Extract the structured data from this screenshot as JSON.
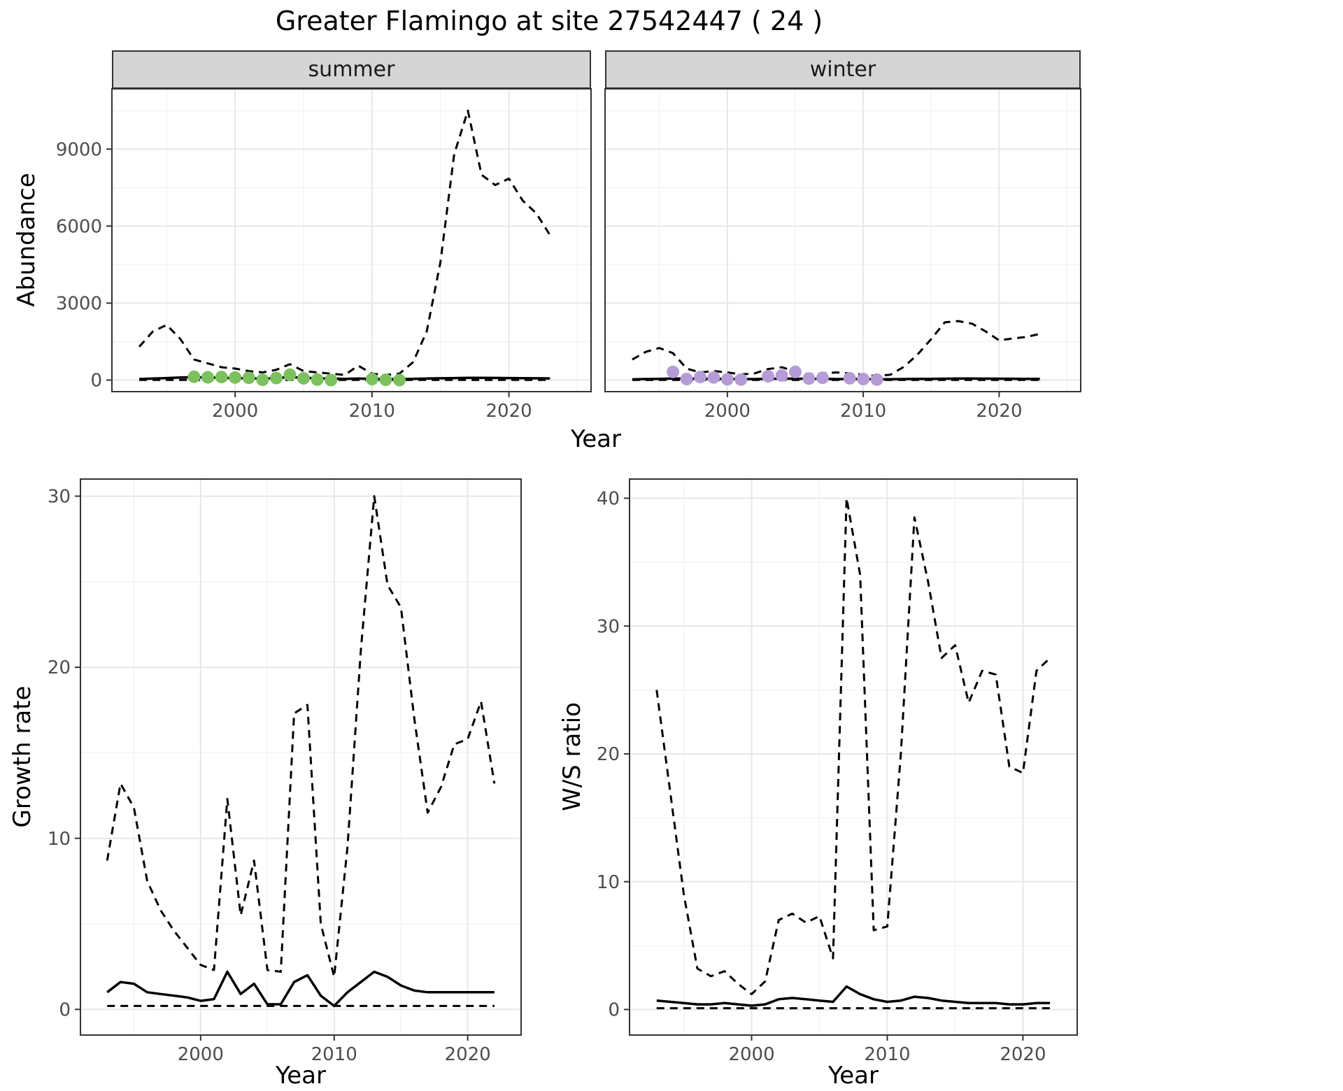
{
  "title": "Greater Flamingo at site 27542447 ( 24 )",
  "colors": {
    "summer_points": "#7cc15e",
    "winter_points": "#b69cd6",
    "line": "#000000"
  },
  "chart_data": [
    {
      "id": "abundance-summer",
      "type": "line",
      "facet_label": "summer",
      "xlabel": "Year",
      "ylabel": "Abundance",
      "xlim": [
        1991,
        2026
      ],
      "ylim": [
        -450,
        11350
      ],
      "xticks": [
        2000,
        2010,
        2020
      ],
      "yticks": [
        0,
        3000,
        6000,
        9000
      ],
      "grid": true,
      "legend": "none",
      "series": [
        {
          "name": "upper_dashed",
          "style": "dashed",
          "color": "#000000",
          "x": [
            1993,
            1994,
            1995,
            1996,
            1997,
            1998,
            1999,
            2000,
            2001,
            2002,
            2003,
            2004,
            2005,
            2006,
            2007,
            2008,
            2009,
            2010,
            2011,
            2012,
            2013,
            2014,
            2015,
            2016,
            2017,
            2018,
            2019,
            2020,
            2021,
            2022,
            2023
          ],
          "y": [
            1300,
            1900,
            2150,
            1600,
            800,
            650,
            500,
            450,
            350,
            300,
            400,
            620,
            350,
            300,
            250,
            200,
            560,
            250,
            200,
            250,
            700,
            1900,
            4600,
            8800,
            10500,
            8000,
            7600,
            7850,
            7000,
            6500,
            5650
          ]
        },
        {
          "name": "estimate_solid",
          "style": "solid",
          "color": "#000000",
          "x": [
            1993,
            1994,
            1995,
            1996,
            1997,
            1998,
            1999,
            2000,
            2001,
            2002,
            2003,
            2004,
            2005,
            2006,
            2007,
            2008,
            2009,
            2010,
            2011,
            2012,
            2013,
            2014,
            2015,
            2016,
            2017,
            2018,
            2019,
            2020,
            2021,
            2022,
            2023
          ],
          "y": [
            40,
            60,
            80,
            100,
            110,
            100,
            90,
            80,
            70,
            60,
            80,
            120,
            90,
            70,
            60,
            50,
            60,
            50,
            40,
            40,
            50,
            60,
            70,
            80,
            90,
            90,
            85,
            80,
            75,
            70,
            65
          ]
        },
        {
          "name": "lower_dashed",
          "style": "dashed",
          "color": "#000000",
          "x": [
            1993,
            1994,
            1995,
            1996,
            1997,
            1998,
            1999,
            2000,
            2001,
            2002,
            2003,
            2004,
            2005,
            2006,
            2007,
            2008,
            2009,
            2010,
            2011,
            2012,
            2013,
            2014,
            2015,
            2016,
            2017,
            2018,
            2019,
            2020,
            2021,
            2022,
            2023
          ],
          "y": [
            5,
            5,
            5,
            5,
            5,
            5,
            5,
            5,
            5,
            5,
            5,
            5,
            5,
            5,
            5,
            5,
            5,
            5,
            5,
            5,
            5,
            5,
            5,
            5,
            5,
            5,
            5,
            5,
            5,
            5,
            5
          ]
        },
        {
          "name": "observed_points",
          "style": "points",
          "color": "#7cc15e",
          "x": [
            1997,
            1998,
            1999,
            2000,
            2001,
            2002,
            2003,
            2004,
            2005,
            2006,
            2007,
            2010,
            2011,
            2012
          ],
          "y": [
            130,
            110,
            120,
            100,
            90,
            10,
            80,
            210,
            70,
            20,
            0,
            40,
            10,
            0
          ]
        }
      ]
    },
    {
      "id": "abundance-winter",
      "type": "line",
      "facet_label": "winter",
      "xlabel": "Year",
      "ylabel": "Abundance",
      "xlim": [
        1991,
        2026
      ],
      "ylim": [
        -450,
        11350
      ],
      "xticks": [
        2000,
        2010,
        2020
      ],
      "yticks": [
        0,
        3000,
        6000,
        9000
      ],
      "grid": true,
      "legend": "none",
      "series": [
        {
          "name": "upper_dashed",
          "style": "dashed",
          "color": "#000000",
          "x": [
            1993,
            1994,
            1995,
            1996,
            1997,
            1998,
            1999,
            2000,
            2001,
            2002,
            2003,
            2004,
            2005,
            2006,
            2007,
            2008,
            2009,
            2010,
            2011,
            2012,
            2013,
            2014,
            2015,
            2016,
            2017,
            2018,
            2019,
            2020,
            2021,
            2022,
            2023
          ],
          "y": [
            800,
            1100,
            1250,
            1050,
            450,
            300,
            350,
            300,
            220,
            260,
            430,
            500,
            340,
            220,
            260,
            300,
            260,
            210,
            160,
            210,
            520,
            1000,
            1600,
            2250,
            2300,
            2200,
            1900,
            1550,
            1620,
            1680,
            1800
          ]
        },
        {
          "name": "estimate_solid",
          "style": "solid",
          "color": "#000000",
          "x": [
            1993,
            1994,
            1995,
            1996,
            1997,
            1998,
            1999,
            2000,
            2001,
            2002,
            2003,
            2004,
            2005,
            2006,
            2007,
            2008,
            2009,
            2010,
            2011,
            2012,
            2013,
            2014,
            2015,
            2016,
            2017,
            2018,
            2019,
            2020,
            2021,
            2022,
            2023
          ],
          "y": [
            30,
            40,
            50,
            60,
            60,
            55,
            50,
            45,
            40,
            40,
            50,
            60,
            55,
            50,
            45,
            40,
            40,
            38,
            35,
            35,
            40,
            45,
            50,
            55,
            60,
            60,
            58,
            55,
            52,
            50,
            50
          ]
        },
        {
          "name": "lower_dashed",
          "style": "dashed",
          "color": "#000000",
          "x": [
            1993,
            1994,
            1995,
            1996,
            1997,
            1998,
            1999,
            2000,
            2001,
            2002,
            2003,
            2004,
            2005,
            2006,
            2007,
            2008,
            2009,
            2010,
            2011,
            2012,
            2013,
            2014,
            2015,
            2016,
            2017,
            2018,
            2019,
            2020,
            2021,
            2022,
            2023
          ],
          "y": [
            5,
            5,
            5,
            5,
            5,
            5,
            5,
            5,
            5,
            5,
            5,
            5,
            5,
            5,
            5,
            5,
            5,
            5,
            5,
            5,
            5,
            5,
            5,
            5,
            5,
            5,
            5,
            5,
            5,
            5,
            5
          ]
        },
        {
          "name": "observed_points",
          "style": "points",
          "color": "#b69cd6",
          "x": [
            1996,
            1997,
            1998,
            1999,
            2000,
            2001,
            2003,
            2004,
            2005,
            2006,
            2007,
            2009,
            2010,
            2011
          ],
          "y": [
            320,
            40,
            120,
            100,
            30,
            20,
            150,
            180,
            320,
            60,
            90,
            70,
            40,
            20
          ]
        }
      ]
    },
    {
      "id": "growth-rate",
      "type": "line",
      "facet_label": "",
      "xlabel": "Year",
      "ylabel": "Growth rate",
      "xlim": [
        1991,
        2024
      ],
      "ylim": [
        -1.5,
        31
      ],
      "xticks": [
        2000,
        2010,
        2020
      ],
      "yticks": [
        0,
        10,
        20,
        30
      ],
      "grid": true,
      "legend": "none",
      "series": [
        {
          "name": "upper_dashed",
          "style": "dashed",
          "color": "#000000",
          "x": [
            1993,
            1994,
            1995,
            1996,
            1997,
            1998,
            1999,
            2000,
            2001,
            2002,
            2003,
            2004,
            2005,
            2006,
            2007,
            2008,
            2009,
            2010,
            2011,
            2012,
            2013,
            2014,
            2015,
            2016,
            2017,
            2018,
            2019,
            2020,
            2021,
            2022
          ],
          "y": [
            8.7,
            13.2,
            11.8,
            7.5,
            5.8,
            4.6,
            3.6,
            2.6,
            2.3,
            12.3,
            5.5,
            8.7,
            2.3,
            2.2,
            17.3,
            17.8,
            5.0,
            1.9,
            9.5,
            21.0,
            30.0,
            24.8,
            23.5,
            17.0,
            11.5,
            13.0,
            15.5,
            15.8,
            18.0,
            13.2
          ]
        },
        {
          "name": "estimate_solid",
          "style": "solid",
          "color": "#000000",
          "x": [
            1993,
            1994,
            1995,
            1996,
            1997,
            1998,
            1999,
            2000,
            2001,
            2002,
            2003,
            2004,
            2005,
            2006,
            2007,
            2008,
            2009,
            2010,
            2011,
            2012,
            2013,
            2014,
            2015,
            2016,
            2017,
            2018,
            2019,
            2020,
            2021,
            2022
          ],
          "y": [
            1.0,
            1.6,
            1.5,
            1.0,
            0.9,
            0.8,
            0.7,
            0.5,
            0.6,
            2.2,
            0.9,
            1.5,
            0.3,
            0.3,
            1.6,
            2.0,
            0.8,
            0.2,
            1.0,
            1.6,
            2.2,
            1.9,
            1.4,
            1.1,
            1.0,
            1.0,
            1.0,
            1.0,
            1.0,
            1.0
          ]
        },
        {
          "name": "lower_dashed",
          "style": "dashed",
          "color": "#000000",
          "x": [
            1993,
            1994,
            1995,
            1996,
            1997,
            1998,
            1999,
            2000,
            2001,
            2002,
            2003,
            2004,
            2005,
            2006,
            2007,
            2008,
            2009,
            2010,
            2011,
            2012,
            2013,
            2014,
            2015,
            2016,
            2017,
            2018,
            2019,
            2020,
            2021,
            2022
          ],
          "y": [
            0.2,
            0.2,
            0.2,
            0.2,
            0.2,
            0.2,
            0.2,
            0.2,
            0.2,
            0.2,
            0.2,
            0.2,
            0.2,
            0.2,
            0.2,
            0.2,
            0.2,
            0.2,
            0.2,
            0.2,
            0.2,
            0.2,
            0.2,
            0.2,
            0.2,
            0.2,
            0.2,
            0.2,
            0.2,
            0.2
          ]
        }
      ]
    },
    {
      "id": "ws-ratio",
      "type": "line",
      "facet_label": "",
      "xlabel": "Year",
      "ylabel": "W/S ratio",
      "xlim": [
        1991,
        2024
      ],
      "ylim": [
        -2,
        41.5
      ],
      "xticks": [
        2000,
        2010,
        2020
      ],
      "yticks": [
        0,
        10,
        20,
        30,
        40
      ],
      "grid": true,
      "legend": "none",
      "series": [
        {
          "name": "upper_dashed",
          "style": "dashed",
          "color": "#000000",
          "x": [
            1993,
            1994,
            1995,
            1996,
            1997,
            1998,
            1999,
            2000,
            2001,
            2002,
            2003,
            2004,
            2005,
            2006,
            2007,
            2008,
            2009,
            2010,
            2011,
            2012,
            2013,
            2014,
            2015,
            2016,
            2017,
            2018,
            2019,
            2020,
            2021,
            2022
          ],
          "y": [
            25.0,
            17.0,
            9.0,
            3.2,
            2.6,
            3.0,
            2.0,
            1.2,
            2.2,
            7.0,
            7.5,
            6.8,
            7.3,
            4.0,
            40.0,
            34.0,
            6.2,
            6.5,
            20.0,
            38.5,
            33.5,
            27.5,
            28.5,
            24.0,
            26.5,
            26.2,
            19.0,
            18.5,
            26.5,
            27.5
          ]
        },
        {
          "name": "estimate_solid",
          "style": "solid",
          "color": "#000000",
          "x": [
            1993,
            1994,
            1995,
            1996,
            1997,
            1998,
            1999,
            2000,
            2001,
            2002,
            2003,
            2004,
            2005,
            2006,
            2007,
            2008,
            2009,
            2010,
            2011,
            2012,
            2013,
            2014,
            2015,
            2016,
            2017,
            2018,
            2019,
            2020,
            2021,
            2022
          ],
          "y": [
            0.7,
            0.6,
            0.5,
            0.4,
            0.4,
            0.5,
            0.4,
            0.3,
            0.4,
            0.8,
            0.9,
            0.8,
            0.7,
            0.6,
            1.8,
            1.2,
            0.8,
            0.6,
            0.7,
            1.0,
            0.9,
            0.7,
            0.6,
            0.5,
            0.5,
            0.5,
            0.4,
            0.4,
            0.5,
            0.5
          ]
        },
        {
          "name": "lower_dashed",
          "style": "dashed",
          "color": "#000000",
          "x": [
            1993,
            1994,
            1995,
            1996,
            1997,
            1998,
            1999,
            2000,
            2001,
            2002,
            2003,
            2004,
            2005,
            2006,
            2007,
            2008,
            2009,
            2010,
            2011,
            2012,
            2013,
            2014,
            2015,
            2016,
            2017,
            2018,
            2019,
            2020,
            2021,
            2022
          ],
          "y": [
            0.1,
            0.1,
            0.1,
            0.1,
            0.1,
            0.1,
            0.1,
            0.1,
            0.1,
            0.1,
            0.1,
            0.1,
            0.1,
            0.1,
            0.1,
            0.1,
            0.1,
            0.1,
            0.1,
            0.1,
            0.1,
            0.1,
            0.1,
            0.1,
            0.1,
            0.1,
            0.1,
            0.1,
            0.1,
            0.1
          ]
        }
      ]
    }
  ]
}
